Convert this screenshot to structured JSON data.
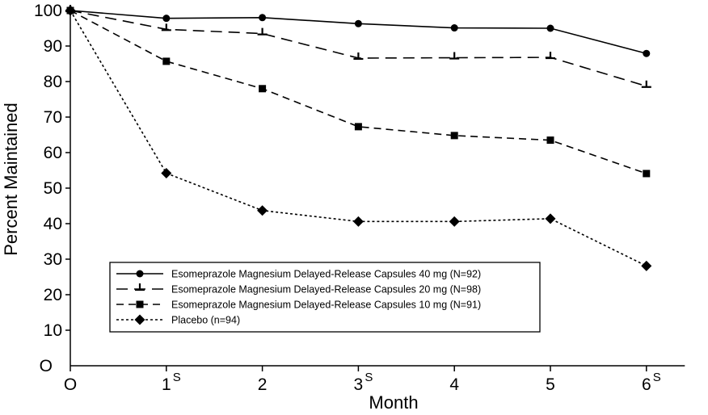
{
  "chart_data": {
    "type": "line",
    "xlabel": "Month",
    "ylabel": "Percent Maintained",
    "x": [
      0,
      1,
      2,
      3,
      4,
      5,
      6
    ],
    "x_tick_labels": [
      "O",
      "1",
      "2",
      "3",
      "4",
      "5",
      "6"
    ],
    "x_tick_superscripts": [
      "",
      "S",
      "",
      "S",
      "",
      "",
      "S"
    ],
    "y_origin_label": "O",
    "y_ticks": [
      10,
      20,
      30,
      40,
      50,
      60,
      70,
      80,
      90,
      100
    ],
    "xlim": [
      0,
      6.4
    ],
    "ylim": [
      0,
      100
    ],
    "grid": false,
    "legend_position": "bottom-right",
    "series": [
      {
        "name": "Esomeprazole Magnesium Delayed-Release Capsules 40 mg (N=92)",
        "style": "solid",
        "marker": "circle",
        "values": [
          100,
          97.8,
          98,
          96.3,
          95.1,
          95,
          87.9
        ]
      },
      {
        "name": "Esomeprazole Magnesium Delayed-Release Capsules 20 mg (N=98)",
        "style": "longdash",
        "marker": "tee",
        "values": [
          100,
          94.7,
          93.5,
          86.6,
          86.7,
          86.8,
          78.7
        ]
      },
      {
        "name": "Esomeprazole Magnesium Delayed-Release Capsules 10 mg (N=91)",
        "style": "dash",
        "marker": "square",
        "values": [
          100,
          85.7,
          78,
          67.3,
          64.8,
          63.5,
          54.1
        ]
      },
      {
        "name": "Placebo (n=94)",
        "style": "dotted",
        "marker": "diamond",
        "values": [
          100,
          54.2,
          43.7,
          40.6,
          40.6,
          41.4,
          28.1
        ]
      }
    ]
  }
}
